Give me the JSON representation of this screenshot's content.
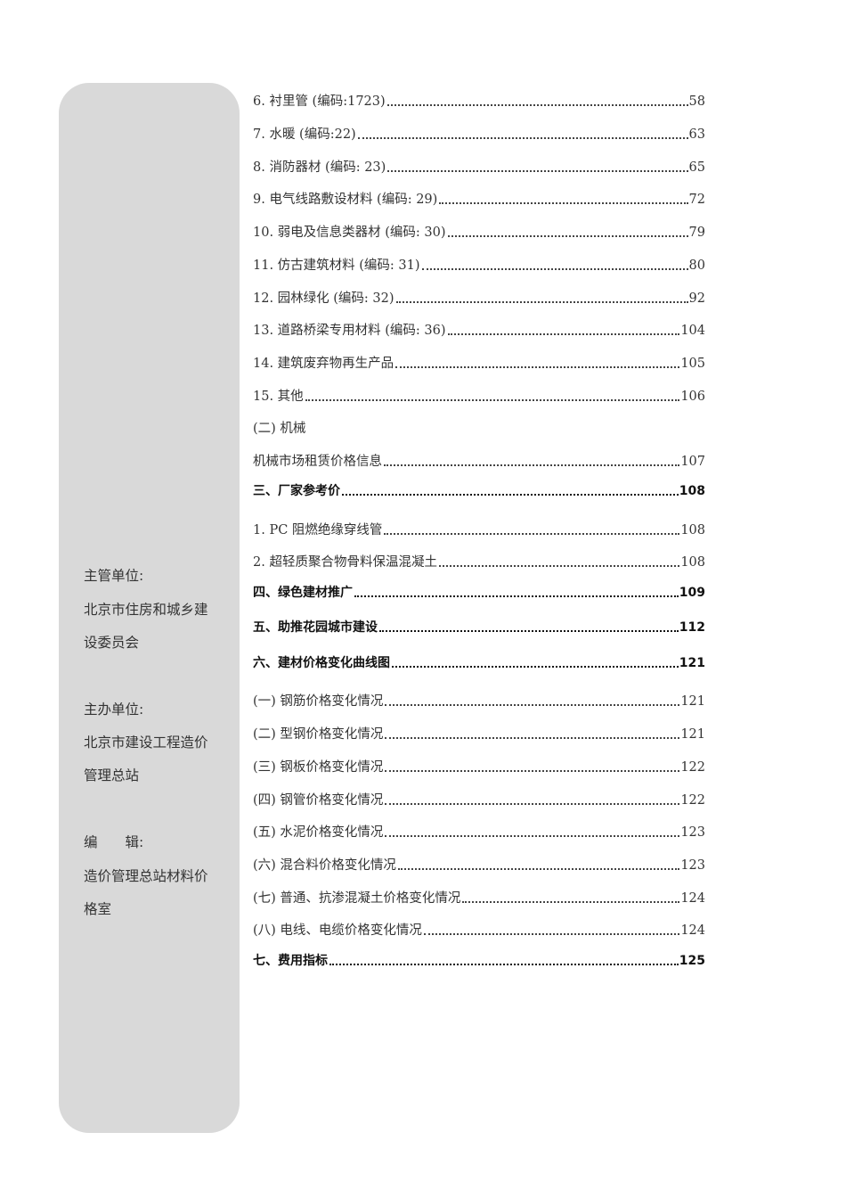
{
  "sidebar": {
    "supervisor_label": "主管单位:",
    "supervisor_line1": "北京市住房和城乡建",
    "supervisor_line2": "设委员会",
    "host_label": "主办单位:",
    "host_line1": "北京市建设工程造价",
    "host_line2": "管理总站",
    "editor_label": "编　　辑:",
    "editor_line1": "造价管理总站材料价",
    "editor_line2": "格室"
  },
  "toc": [
    {
      "title": "6. 衬里管 (编码:1723)",
      "page": "58"
    },
    {
      "title": "7. 水暖 (编码:22)",
      "page": "63"
    },
    {
      "title": "8. 消防器材 (编码: 23)",
      "page": "65"
    },
    {
      "title": "9. 电气线路敷设材料 (编码: 29)",
      "page": "72"
    },
    {
      "title": "10. 弱电及信息类器材 (编码: 30)",
      "page": "79"
    },
    {
      "title": "11. 仿古建筑材料 (编码: 31)",
      "page": "80"
    },
    {
      "title": "12. 园林绿化 (编码: 32)",
      "page": "92"
    },
    {
      "title": "13. 道路桥梁专用材料 (编码: 36)",
      "page": "104"
    },
    {
      "title": "14. 建筑废弃物再生产品",
      "page": "105"
    },
    {
      "title": "15. 其他",
      "page": "106"
    },
    {
      "title": " (二) 机械",
      "page": ""
    },
    {
      "title": "机械市场租赁价格信息",
      "page": "107"
    },
    {
      "title": "三、厂家参考价",
      "page": "108"
    },
    {
      "title": "1. PC 阻燃绝缘穿线管",
      "page": "108"
    },
    {
      "title": "2. 超轻质聚合物骨料保温混凝土",
      "page": "108"
    },
    {
      "title": "四、绿色建材推广",
      "page": "109"
    },
    {
      "title": "五、助推花园城市建设 ",
      "page": "112"
    },
    {
      "title": "六、建材价格变化曲线图",
      "page": "121"
    },
    {
      "title": " (一) 钢筋价格变化情况",
      "page": "121"
    },
    {
      "title": " (二) 型钢价格变化情况",
      "page": "121"
    },
    {
      "title": " (三) 钢板价格变化情况",
      "page": "122"
    },
    {
      "title": " (四) 钢管价格变化情况",
      "page": "122"
    },
    {
      "title": " (五) 水泥价格变化情况",
      "page": "123"
    },
    {
      "title": " (六) 混合料价格变化情况",
      "page": "123"
    },
    {
      "title": " (七) 普通、抗渗混凝土价格变化情况",
      "page": "124"
    },
    {
      "title": " (八) 电线、电缆价格变化情况",
      "page": "124"
    },
    {
      "title": "七、费用指标",
      "page": "125"
    }
  ]
}
